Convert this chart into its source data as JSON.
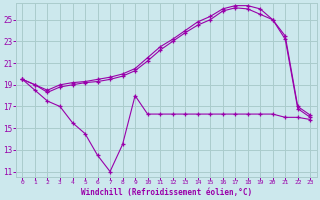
{
  "background_color": "#cce8ed",
  "grid_color": "#aacccc",
  "line_color": "#9900aa",
  "xlabel": "Windchill (Refroidissement éolien,°C)",
  "xlim": [
    -0.5,
    23.5
  ],
  "ylim": [
    10.5,
    26.5
  ],
  "xticks": [
    0,
    1,
    2,
    3,
    4,
    5,
    6,
    7,
    8,
    9,
    10,
    11,
    12,
    13,
    14,
    15,
    16,
    17,
    18,
    19,
    20,
    21,
    22,
    23
  ],
  "yticks": [
    11,
    13,
    15,
    17,
    19,
    21,
    23,
    25
  ],
  "line1_x": [
    0,
    1,
    2,
    3,
    4,
    5,
    6,
    7,
    8,
    9,
    10,
    11,
    12,
    13,
    14,
    15,
    16,
    17,
    18,
    19,
    20,
    21,
    22,
    23
  ],
  "line1_y": [
    19.5,
    19.0,
    18.5,
    19.0,
    19.2,
    19.3,
    19.5,
    19.7,
    20.0,
    20.5,
    21.5,
    22.5,
    23.2,
    24.0,
    24.8,
    25.3,
    26.0,
    26.3,
    26.3,
    26.0,
    25.0,
    23.5,
    17.0,
    16.2
  ],
  "line2_x": [
    0,
    1,
    2,
    3,
    4,
    5,
    6,
    7,
    8,
    9,
    10,
    11,
    12,
    13,
    14,
    15,
    16,
    17,
    18,
    19,
    20,
    21,
    22,
    23
  ],
  "line2_y": [
    19.5,
    19.0,
    18.3,
    18.8,
    19.0,
    19.2,
    19.3,
    19.5,
    19.8,
    20.3,
    21.2,
    22.2,
    23.0,
    23.8,
    24.5,
    25.0,
    25.8,
    26.1,
    26.0,
    25.5,
    25.0,
    23.2,
    16.8,
    16.0
  ],
  "line3_x": [
    0,
    1,
    2,
    3,
    4,
    5,
    6,
    7,
    8,
    9,
    10,
    11,
    12,
    13,
    14,
    15,
    16,
    17,
    18,
    19,
    20,
    21,
    22,
    23
  ],
  "line3_y": [
    19.5,
    18.5,
    17.5,
    17.0,
    15.5,
    14.5,
    12.5,
    11.0,
    13.5,
    18.0,
    16.3,
    16.3,
    16.3,
    16.3,
    16.3,
    16.3,
    16.3,
    16.3,
    16.3,
    16.3,
    16.3,
    16.0,
    16.0,
    15.8
  ]
}
